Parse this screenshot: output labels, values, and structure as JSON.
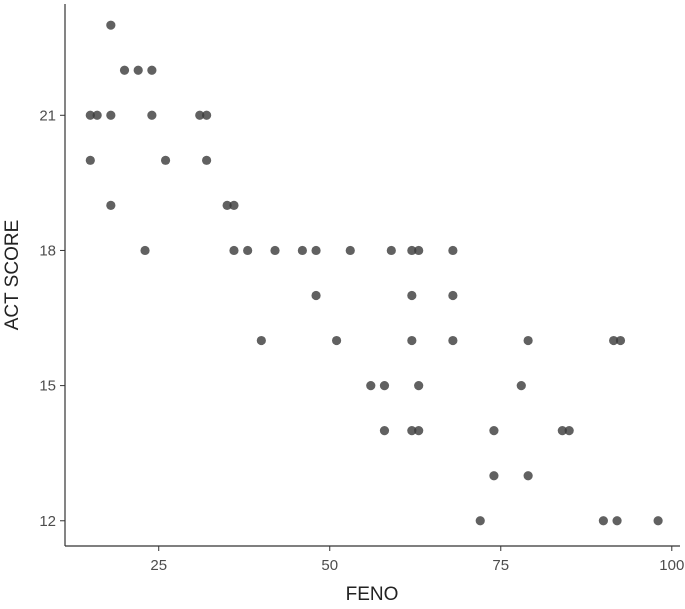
{
  "chart_data": {
    "type": "scatter",
    "x_label": "FENO",
    "y_label": "ACT SCORE",
    "color": "#3a3a3a",
    "x": [
      18,
      20,
      22,
      24,
      15,
      16,
      18,
      24,
      31,
      32,
      15,
      26,
      32,
      18,
      35,
      36,
      23,
      36,
      38,
      42,
      46,
      48,
      53,
      59,
      62,
      63,
      68,
      48,
      62,
      68,
      40,
      51,
      62,
      68,
      79,
      91.5,
      92.5,
      56,
      58,
      63,
      78,
      58,
      62,
      63,
      74,
      84,
      85,
      74,
      79,
      72,
      90,
      92,
      98
    ],
    "y": [
      23,
      22,
      22,
      22,
      21,
      21,
      21,
      21,
      21,
      21,
      20,
      20,
      20,
      19,
      19,
      19,
      18,
      18,
      18,
      18,
      18,
      18,
      18,
      18,
      18,
      18,
      18,
      17,
      17,
      17,
      16,
      16,
      16,
      16,
      16,
      16,
      16,
      15,
      15,
      15,
      15,
      14,
      14,
      14,
      14,
      14,
      14,
      13,
      13,
      12,
      12,
      12,
      12
    ],
    "xlim": [
      11.3,
      101.2
    ],
    "ylim": [
      11.44,
      23.47
    ],
    "xticks": [
      25,
      50,
      75,
      100
    ],
    "yticks": [
      12,
      15,
      18,
      21
    ]
  }
}
